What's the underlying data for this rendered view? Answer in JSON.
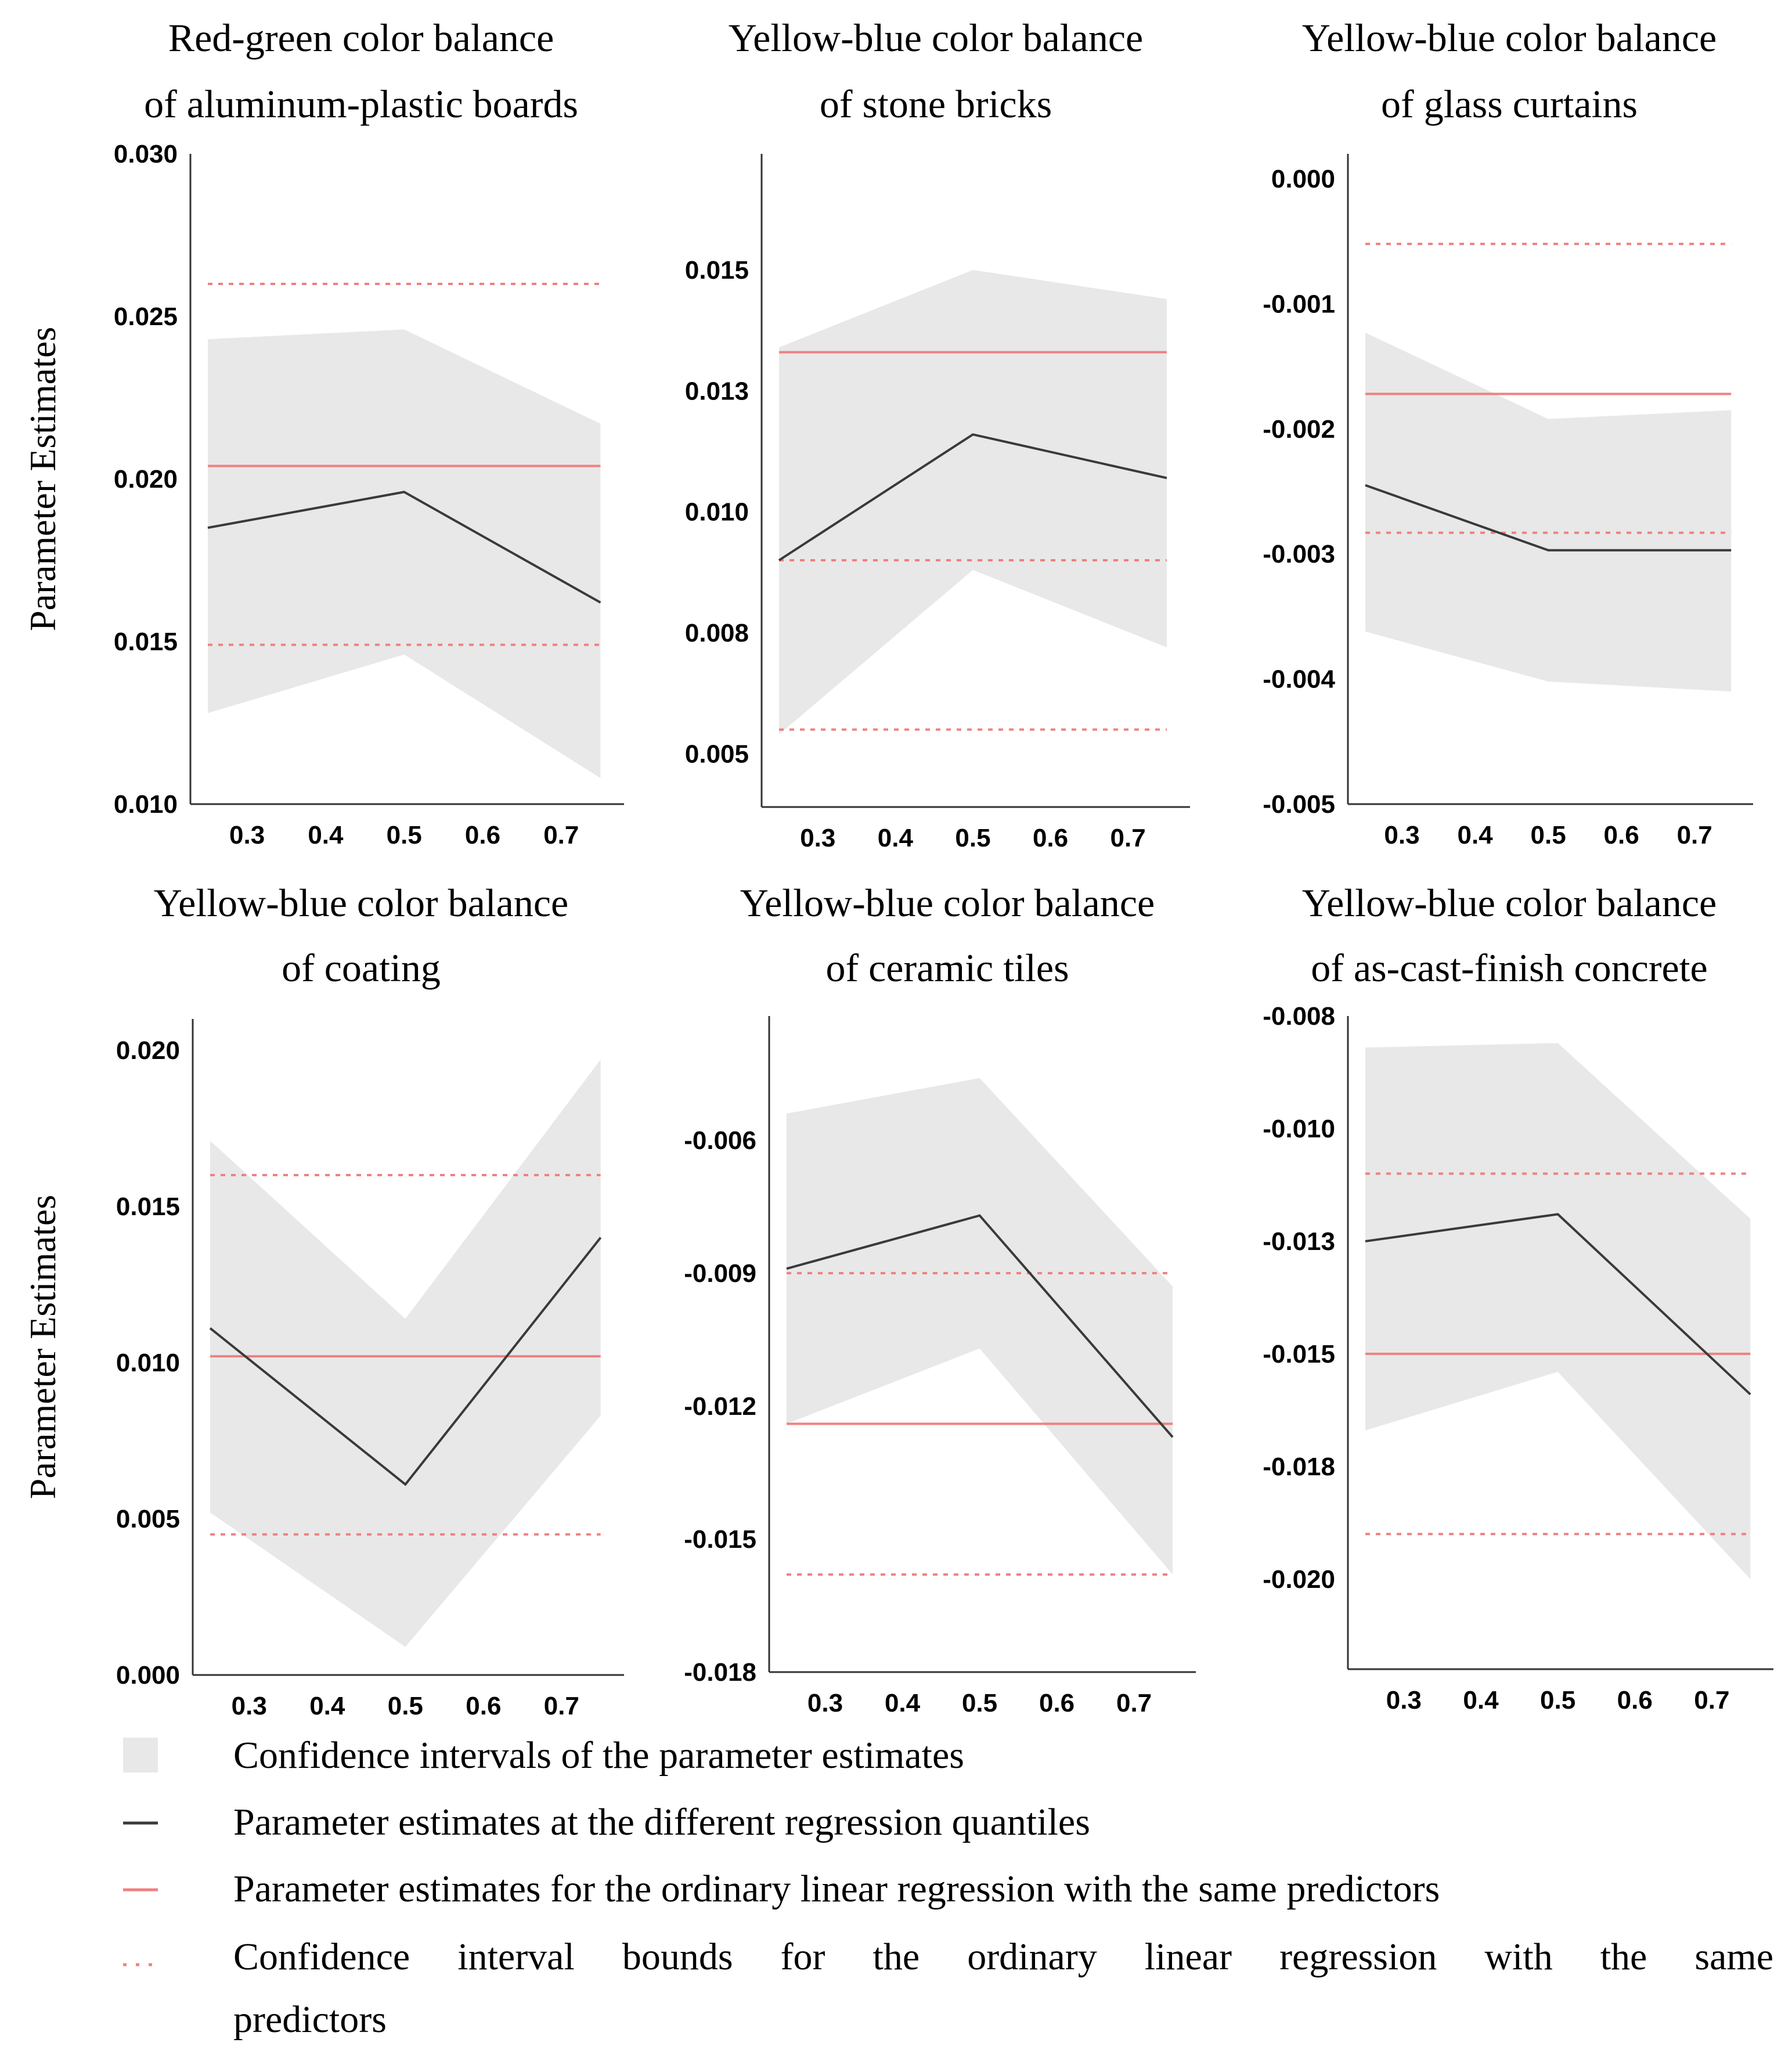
{
  "colors": {
    "ci_band": "#e8e8e8",
    "quantile_line": "#3a3a3a",
    "ols_line": "#f08080",
    "ols_ci": "#f08080",
    "axis": "#333333"
  },
  "legend": {
    "items": [
      {
        "kind": "band",
        "label": "Confidence intervals of the parameter estimates"
      },
      {
        "kind": "solid-dark",
        "label": "Parameter estimates at the different regression quantiles"
      },
      {
        "kind": "solid-red",
        "label": "Parameter estimates for the ordinary linear regression with the same predictors"
      },
      {
        "kind": "dotted-red",
        "label_line1": [
          "Confidence",
          "interval",
          "bounds",
          "for",
          "the",
          "ordinary",
          "linear",
          "regression",
          "with",
          "the",
          "same"
        ],
        "label_line2": "predictors"
      }
    ]
  },
  "chart_data": [
    {
      "type": "line",
      "title_lines": [
        "Red-green color balance",
        "of aluminum-plastic boards"
      ],
      "ylabel": "Parameter Estimates",
      "x_ticks": [
        "0.3",
        "0.4",
        "0.5",
        "0.6",
        "0.7"
      ],
      "y_ticks": [
        "0.010",
        "0.015",
        "0.020",
        "0.025",
        "0.030"
      ],
      "y_tick_values": [
        0.01,
        0.015,
        0.02,
        0.025,
        0.03
      ],
      "ylim": [
        0.01,
        0.03
      ],
      "xlim": [
        0.25,
        0.78
      ],
      "x": [
        0.25,
        0.5,
        0.75
      ],
      "estimate": [
        0.0185,
        0.0196,
        0.0162
      ],
      "ci_lower": [
        0.0128,
        0.0146,
        0.0108
      ],
      "ci_upper": [
        0.0243,
        0.0246,
        0.0217
      ],
      "ols_estimate": 0.0204,
      "ols_ci": [
        0.0149,
        0.026
      ]
    },
    {
      "type": "line",
      "title_lines": [
        "Yellow-blue color balance",
        "of stone bricks"
      ],
      "ylabel": "",
      "x_ticks": [
        "0.3",
        "0.4",
        "0.5",
        "0.6",
        "0.7"
      ],
      "y_ticks": [
        "0.005",
        "0.008",
        "0.010",
        "0.013",
        "0.015"
      ],
      "y_tick_values": [
        0.005,
        0.0075,
        0.01,
        0.0125,
        0.015
      ],
      "ylim": [
        0.0039,
        0.0174
      ],
      "xlim": [
        0.25,
        0.78
      ],
      "x": [
        0.25,
        0.5,
        0.75
      ],
      "estimate": [
        0.009,
        0.0116,
        0.0107
      ],
      "ci_lower": [
        0.0054,
        0.0088,
        0.0072
      ],
      "ci_upper": [
        0.0134,
        0.015,
        0.0144
      ],
      "ols_estimate": 0.0133,
      "ols_ci": [
        0.0055,
        0.009
      ]
    },
    {
      "type": "line",
      "title_lines": [
        "Yellow-blue color balance",
        "of glass curtains"
      ],
      "ylabel": "",
      "x_ticks": [
        "0.3",
        "0.4",
        "0.5",
        "0.6",
        "0.7"
      ],
      "y_ticks": [
        "-0.005",
        "-0.004",
        "-0.003",
        "-0.002",
        "-0.001",
        "0.000"
      ],
      "y_tick_values": [
        -0.005,
        -0.004,
        -0.003,
        -0.002,
        -0.001,
        0.0
      ],
      "ylim": [
        -0.005,
        0.0002
      ],
      "xlim": [
        0.25,
        0.78
      ],
      "x": [
        0.25,
        0.5,
        0.75
      ],
      "estimate": [
        -0.00245,
        -0.00297,
        -0.00297
      ],
      "ci_lower": [
        -0.00362,
        -0.00402,
        -0.0041
      ],
      "ci_upper": [
        -0.00123,
        -0.00192,
        -0.00185
      ],
      "ols_estimate": -0.00172,
      "ols_ci": [
        -0.00283,
        -0.00052
      ]
    },
    {
      "type": "line",
      "title_lines": [
        "Yellow-blue color balance",
        "of coating"
      ],
      "ylabel": "Parameter Estimates",
      "x_ticks": [
        "0.3",
        "0.4",
        "0.5",
        "0.6",
        "0.7"
      ],
      "y_ticks": [
        "0.000",
        "0.005",
        "0.010",
        "0.015",
        "0.020"
      ],
      "y_tick_values": [
        0.0,
        0.005,
        0.01,
        0.015,
        0.02
      ],
      "ylim": [
        0.0,
        0.021
      ],
      "xlim": [
        0.25,
        0.78
      ],
      "x": [
        0.25,
        0.5,
        0.75
      ],
      "estimate": [
        0.0111,
        0.0061,
        0.014
      ],
      "ci_lower": [
        0.0052,
        0.0009,
        0.0083
      ],
      "ci_upper": [
        0.0171,
        0.0114,
        0.0197
      ],
      "ols_estimate": 0.0102,
      "ols_ci": [
        0.0045,
        0.016
      ]
    },
    {
      "type": "line",
      "title_lines": [
        "Yellow-blue color balance",
        "of ceramic tiles"
      ],
      "ylabel": "",
      "x_ticks": [
        "0.3",
        "0.4",
        "0.5",
        "0.6",
        "0.7"
      ],
      "y_ticks": [
        "-0.018",
        "-0.015",
        "-0.012",
        "-0.009",
        "-0.006"
      ],
      "y_tick_values": [
        -0.018,
        -0.015,
        -0.012,
        -0.009,
        -0.006
      ],
      "ylim": [
        -0.018,
        -0.0032
      ],
      "xlim": [
        0.25,
        0.78
      ],
      "x": [
        0.25,
        0.5,
        0.75
      ],
      "estimate": [
        -0.0089,
        -0.0077,
        -0.0127
      ],
      "ci_lower": [
        -0.0124,
        -0.0107,
        -0.0158
      ],
      "ci_upper": [
        -0.0054,
        -0.0046,
        -0.0093
      ],
      "ols_estimate": -0.0124,
      "ols_ci": [
        -0.0158,
        -0.009
      ]
    },
    {
      "type": "line",
      "title_lines": [
        "Yellow-blue color balance",
        "of as-cast-finish concrete"
      ],
      "ylabel": "",
      "x_ticks": [
        "0.3",
        "0.4",
        "0.5",
        "0.6",
        "0.7"
      ],
      "y_ticks": [
        "-0.020",
        "-0.018",
        "-0.015",
        "-0.013",
        "-0.010",
        "-0.008"
      ],
      "y_tick_values": [
        -0.02,
        -0.0175,
        -0.015,
        -0.0125,
        -0.01,
        -0.0075
      ],
      "ylim": [
        -0.022,
        -0.0075
      ],
      "xlim": [
        0.25,
        0.78
      ],
      "x": [
        0.25,
        0.5,
        0.75
      ],
      "estimate": [
        -0.0125,
        -0.0119,
        -0.0159
      ],
      "ci_lower": [
        -0.0167,
        -0.0154,
        -0.02
      ],
      "ci_upper": [
        -0.0082,
        -0.0081,
        -0.012
      ],
      "ols_estimate": -0.015,
      "ols_ci": [
        -0.019,
        -0.011
      ]
    }
  ]
}
